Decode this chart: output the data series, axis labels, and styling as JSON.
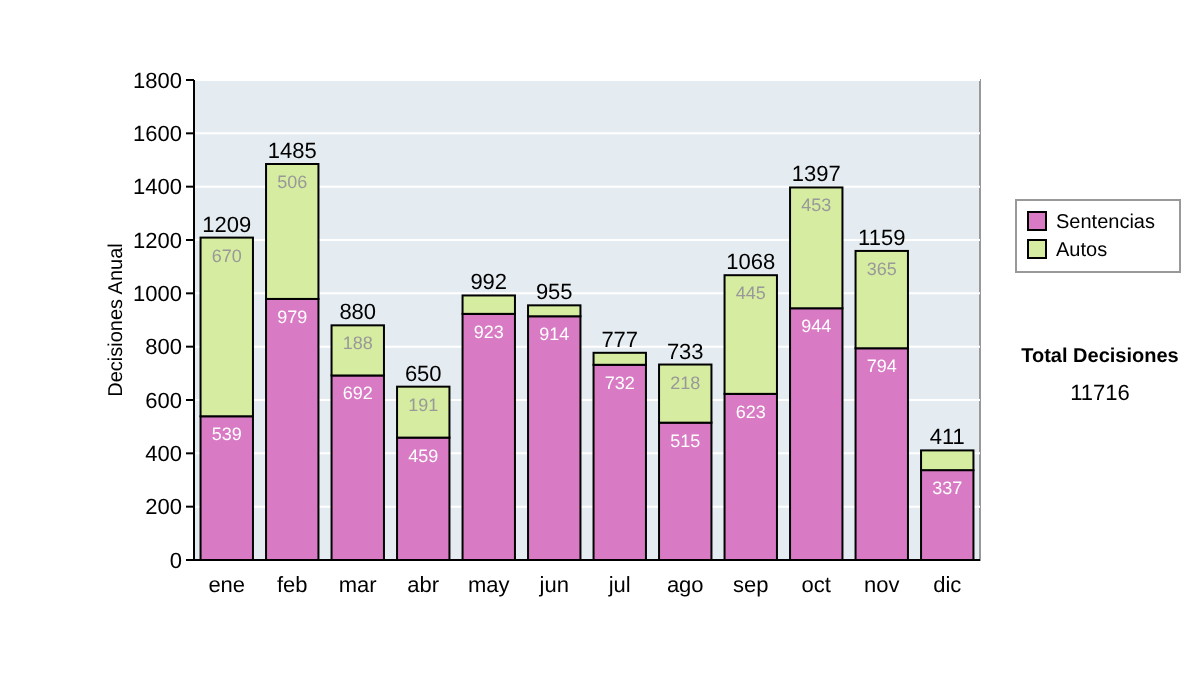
{
  "chart_data": {
    "type": "bar",
    "stacked": true,
    "ylabel": "Decisiones Anual",
    "categories": [
      "ene",
      "feb",
      "mar",
      "abr",
      "may",
      "jun",
      "jul",
      "ago",
      "sep",
      "oct",
      "nov",
      "dic"
    ],
    "series": [
      {
        "name": "Sentencias",
        "color": "#d87ac4",
        "values": [
          539,
          979,
          692,
          459,
          923,
          914,
          732,
          515,
          623,
          944,
          794,
          337
        ],
        "value_labels": [
          "539",
          "979",
          "692",
          "459",
          "923",
          "914",
          "732",
          "515",
          "623",
          "944",
          "794",
          "337"
        ]
      },
      {
        "name": "Autos",
        "color": "#d6eca0",
        "values": [
          670,
          506,
          188,
          191,
          69,
          41,
          45,
          218,
          445,
          453,
          365,
          74
        ],
        "value_labels": [
          "670",
          "506",
          "188",
          "191",
          null,
          null,
          null,
          "218",
          "445",
          "453",
          "365",
          null
        ]
      }
    ],
    "totals": [
      "1209",
      "1485",
      "880",
      "650",
      "992",
      "955",
      "777",
      "733",
      "1068",
      "1397",
      "1159",
      "411"
    ],
    "ylim": [
      0,
      1800
    ],
    "yticks": [
      0,
      200,
      400,
      600,
      800,
      1000,
      1200,
      1400,
      1600,
      1800
    ],
    "grid": "y",
    "legend": "right",
    "annotations": [
      "Total Decisiones",
      "11716"
    ]
  }
}
